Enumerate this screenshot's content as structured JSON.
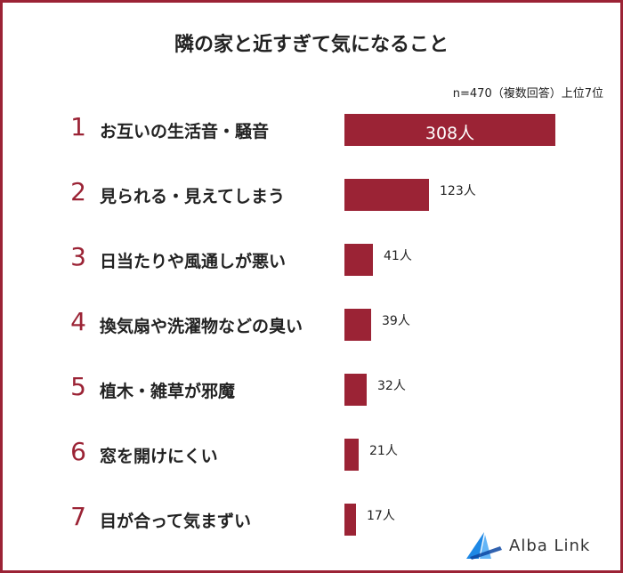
{
  "chart_data": {
    "type": "bar",
    "orientation": "horizontal",
    "title": "隣の家と近すぎて気になること",
    "note": "n=470（複数回答）上位7位",
    "unit": "人",
    "categories": [
      {
        "rank": "1",
        "label": "お互いの生活音・騒音",
        "value": 308,
        "value_label": "308人"
      },
      {
        "rank": "2",
        "label": "見られる・見えてしまう",
        "value": 123,
        "value_label": "123人"
      },
      {
        "rank": "3",
        "label": "日当たりや風通しが悪い",
        "value": 41,
        "value_label": "41人"
      },
      {
        "rank": "4",
        "label": "換気扇や洗濯物などの臭い",
        "value": 39,
        "value_label": "39人"
      },
      {
        "rank": "5",
        "label": "植木・雑草が邪魔",
        "value": 32,
        "value_label": "32人"
      },
      {
        "rank": "6",
        "label": "窓を開けにくい",
        "value": 21,
        "value_label": "21人"
      },
      {
        "rank": "7",
        "label": "目が合って気まずい",
        "value": 17,
        "value_label": "17人"
      }
    ],
    "xlim": [
      0,
      308
    ],
    "bar_color": "#9b2335",
    "rank_color": "#9b2335"
  },
  "brand": {
    "name": "Alba Link",
    "logo_icon": "alba-link-logo-icon",
    "accent": "#1e88e5"
  }
}
